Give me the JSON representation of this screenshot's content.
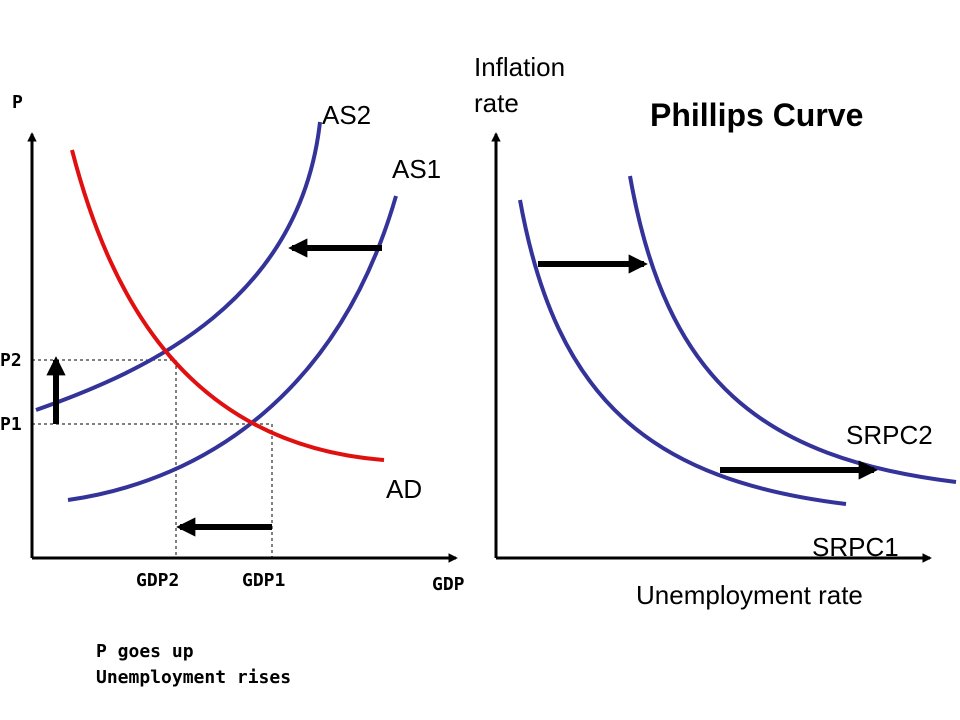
{
  "left_panel": {
    "y_axis_label": "P",
    "x_axis_label": "GDP",
    "curves": {
      "as2": "AS2",
      "as1": "AS1",
      "ad": "AD"
    },
    "y_ticks": {
      "p2": "P2",
      "p1": "P1"
    },
    "x_ticks": {
      "gdp2": "GDP2",
      "gdp1": "GDP1"
    },
    "caption_line1": "P goes up",
    "caption_line2": "Unemployment rises"
  },
  "right_panel": {
    "title": "Phillips Curve",
    "y_axis_label_line1": "Inflation",
    "y_axis_label_line2": "rate",
    "x_axis_label": "Unemployment rate",
    "curves": {
      "srpc2": "SRPC2",
      "srpc1": "SRPC1"
    }
  },
  "colors": {
    "supply_curve": "#333399",
    "demand_curve": "#e01010",
    "axis": "#000000"
  }
}
